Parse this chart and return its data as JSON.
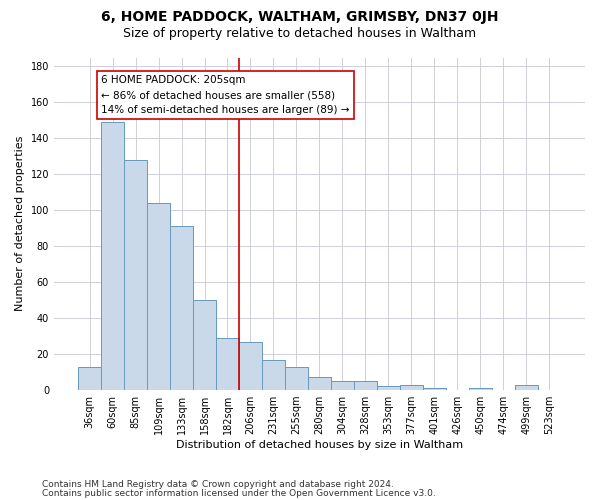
{
  "title": "6, HOME PADDOCK, WALTHAM, GRIMSBY, DN37 0JH",
  "subtitle": "Size of property relative to detached houses in Waltham",
  "xlabel": "Distribution of detached houses by size in Waltham",
  "ylabel": "Number of detached properties",
  "categories": [
    "36sqm",
    "60sqm",
    "85sqm",
    "109sqm",
    "133sqm",
    "158sqm",
    "182sqm",
    "206sqm",
    "231sqm",
    "255sqm",
    "280sqm",
    "304sqm",
    "328sqm",
    "353sqm",
    "377sqm",
    "401sqm",
    "426sqm",
    "450sqm",
    "474sqm",
    "499sqm",
    "523sqm"
  ],
  "values": [
    13,
    149,
    128,
    104,
    91,
    50,
    29,
    27,
    17,
    13,
    7,
    5,
    5,
    2,
    3,
    1,
    0,
    1,
    0,
    3,
    0
  ],
  "bar_color": "#c9d9ea",
  "bar_edge_color": "#6699bb",
  "vline_color": "#cc0000",
  "annotation_text": "6 HOME PADDOCK: 205sqm\n← 86% of detached houses are smaller (558)\n14% of semi-detached houses are larger (89) →",
  "annotation_box_color": "#ffffff",
  "annotation_box_edge": "#cc0000",
  "ylim": [
    0,
    185
  ],
  "yticks": [
    0,
    20,
    40,
    60,
    80,
    100,
    120,
    140,
    160,
    180
  ],
  "footer1": "Contains HM Land Registry data © Crown copyright and database right 2024.",
  "footer2": "Contains public sector information licensed under the Open Government Licence v3.0.",
  "bg_color": "#ffffff",
  "plot_bg_color": "#ffffff",
  "grid_color": "#d0d0dd",
  "title_fontsize": 10,
  "subtitle_fontsize": 9,
  "label_fontsize": 8,
  "tick_fontsize": 7,
  "footer_fontsize": 6.5,
  "annotation_fontsize": 7.5
}
